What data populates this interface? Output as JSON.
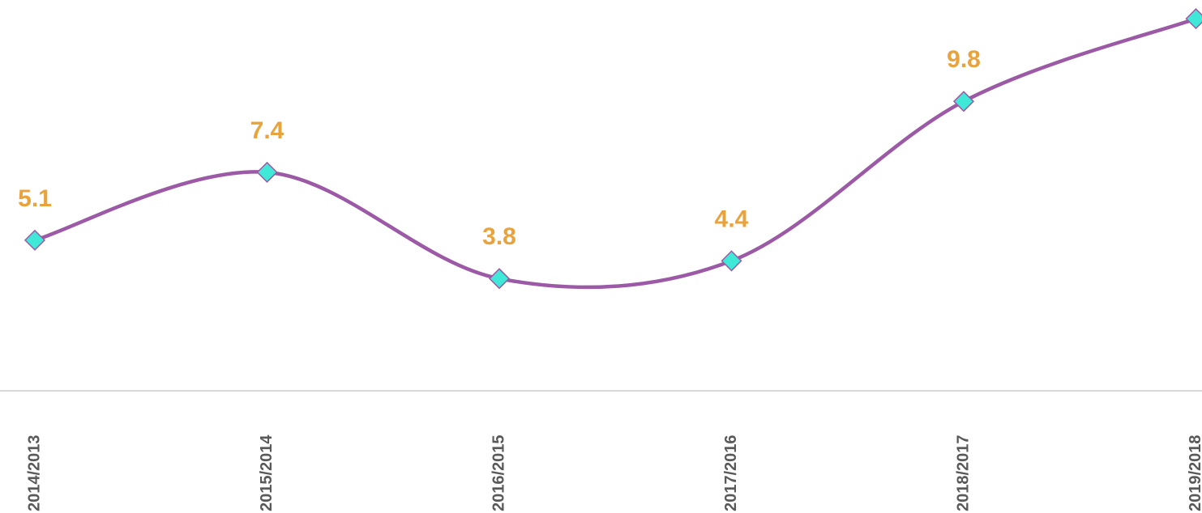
{
  "chart_data": {
    "type": "line",
    "categories": [
      "2014/2013",
      "2015/2014",
      "2016/2015",
      "2017/2016",
      "2018/2017",
      "2019/2018"
    ],
    "values": [
      5.1,
      7.4,
      3.8,
      4.4,
      9.8,
      12.6
    ],
    "color": "#9b59a6",
    "marker_color": "#40e8d8"
  }
}
